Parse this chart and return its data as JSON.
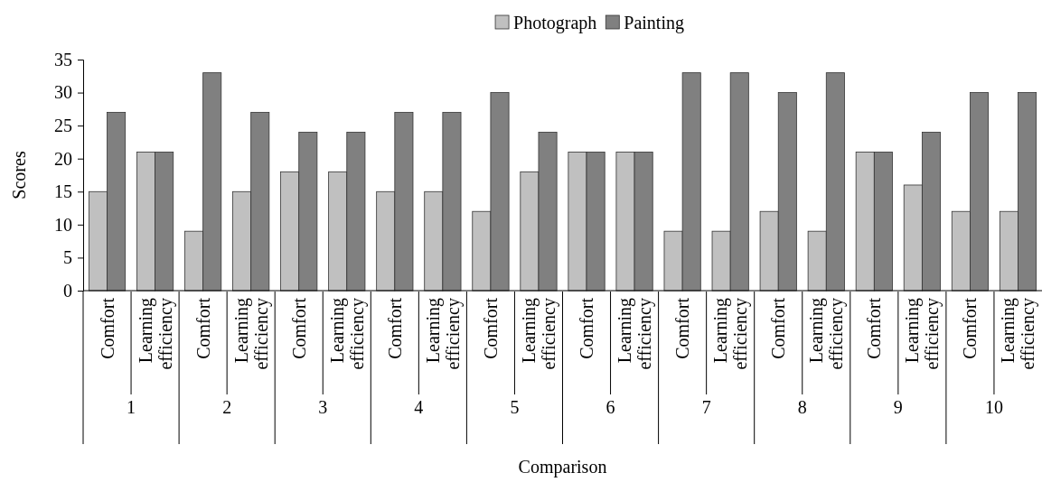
{
  "chart_data": {
    "type": "bar",
    "xlabel": "Comparison",
    "ylabel": "Scores",
    "categories": [
      "Comfort",
      "Learning efficiency",
      "Comfort",
      "Learning efficiency",
      "Comfort",
      "Learning efficiency",
      "Comfort",
      "Learning efficiency",
      "Comfort",
      "Learning efficiency",
      "Comfort",
      "Learning efficiency",
      "Comfort",
      "Learning efficiency",
      "Comfort",
      "Learning efficiency",
      "Comfort",
      "Learning efficiency",
      "Comfort",
      "Learning efficiency"
    ],
    "series": [
      {
        "name": "Photograph",
        "color": "#c0c0c0",
        "values": [
          15,
          21,
          9,
          15,
          18,
          18,
          15,
          15,
          12,
          18,
          21,
          21,
          9,
          9,
          12,
          9,
          21,
          16,
          12,
          12
        ]
      },
      {
        "name": "Painting",
        "color": "#808080",
        "values": [
          27,
          21,
          33,
          27,
          24,
          24,
          27,
          27,
          30,
          24,
          21,
          21,
          33,
          33,
          30,
          33,
          21,
          24,
          30,
          30
        ]
      }
    ],
    "annotations": [
      "1",
      "2",
      "3",
      "4",
      "5",
      "6",
      "7",
      "8",
      "9",
      "10"
    ],
    "ylim": [
      0,
      35
    ],
    "yticks": [
      0,
      5,
      10,
      15,
      20,
      25,
      30,
      35
    ],
    "legend": "top"
  }
}
